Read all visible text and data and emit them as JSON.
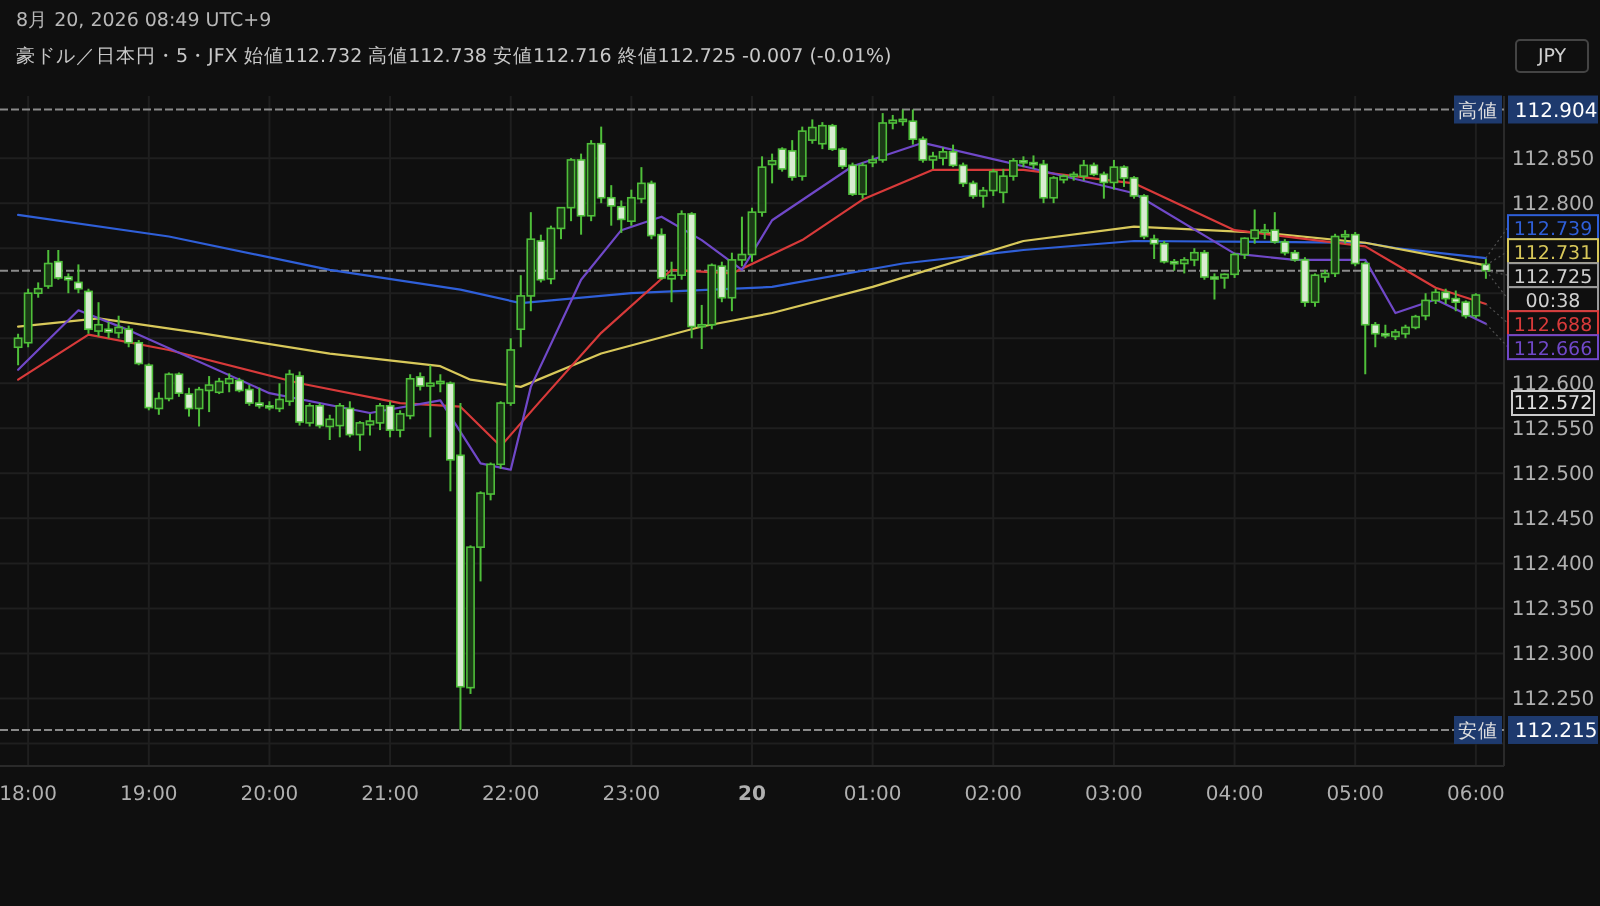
{
  "chart_data": {
    "type": "candlestick",
    "annotations": [
      "8月 20, 2026 08:49 UTC+9",
      "豪ドル／日本円・5・JFX 始値112.732 高値112.738 安値112.716 終値112.725 -0.007 (-0.01%)",
      "JPY",
      {
        "text": "112.739",
        "x": "2026-08-20T06:05",
        "y": 112.739
      },
      {
        "text": "112.731",
        "x": "2026-08-20T06:05",
        "y": 112.731
      },
      {
        "text": "112.725",
        "x": "2026-08-20T06:05",
        "y": 112.725
      },
      {
        "text": "00:38",
        "x": "2026-08-20T06:05",
        "y": 112.725
      },
      {
        "text": "112.688",
        "x": "2026-08-20T06:05",
        "y": 112.688
      },
      {
        "text": "112.666",
        "x": "2026-08-20T06:05",
        "y": 112.666
      },
      "112.572"
    ],
    "x": [
      "2026-08-19T17:55",
      "2026-08-19T18:00",
      "2026-08-19T18:05",
      "2026-08-19T18:10",
      "2026-08-19T18:15",
      "2026-08-19T18:20",
      "2026-08-19T18:25",
      "2026-08-19T18:30",
      "2026-08-19T18:35",
      "2026-08-19T18:40",
      "2026-08-19T18:45",
      "2026-08-19T18:50",
      "2026-08-19T18:55",
      "2026-08-19T19:00",
      "2026-08-19T19:05",
      "2026-08-19T19:10",
      "2026-08-19T19:15",
      "2026-08-19T19:20",
      "2026-08-19T19:25",
      "2026-08-19T19:30",
      "2026-08-19T19:35",
      "2026-08-19T19:40",
      "2026-08-19T19:45",
      "2026-08-19T19:50",
      "2026-08-19T19:55",
      "2026-08-19T20:00",
      "2026-08-19T20:05",
      "2026-08-19T20:10",
      "2026-08-19T20:15",
      "2026-08-19T20:20",
      "2026-08-19T20:25",
      "2026-08-19T20:30",
      "2026-08-19T20:35",
      "2026-08-19T20:40",
      "2026-08-19T20:45",
      "2026-08-19T20:50",
      "2026-08-19T20:55",
      "2026-08-19T21:00",
      "2026-08-19T21:05",
      "2026-08-19T21:10",
      "2026-08-19T21:15",
      "2026-08-19T21:20",
      "2026-08-19T21:25",
      "2026-08-19T21:30",
      "2026-08-19T21:35",
      "2026-08-19T21:40",
      "2026-08-19T21:45",
      "2026-08-19T21:50",
      "2026-08-19T21:55",
      "2026-08-19T22:00",
      "2026-08-19T22:05",
      "2026-08-19T22:10",
      "2026-08-19T22:15",
      "2026-08-19T22:20",
      "2026-08-19T22:25",
      "2026-08-19T22:30",
      "2026-08-19T22:35",
      "2026-08-19T22:40",
      "2026-08-19T22:45",
      "2026-08-19T22:50",
      "2026-08-19T22:55",
      "2026-08-19T23:00",
      "2026-08-19T23:05",
      "2026-08-19T23:10",
      "2026-08-19T23:15",
      "2026-08-19T23:20",
      "2026-08-19T23:25",
      "2026-08-19T23:30",
      "2026-08-19T23:35",
      "2026-08-19T23:40",
      "2026-08-19T23:45",
      "2026-08-19T23:50",
      "2026-08-19T23:55",
      "2026-08-20T00:00",
      "2026-08-20T00:05",
      "2026-08-20T00:10",
      "2026-08-20T00:15",
      "2026-08-20T00:20",
      "2026-08-20T00:25",
      "2026-08-20T00:30",
      "2026-08-20T00:35",
      "2026-08-20T00:40",
      "2026-08-20T00:45",
      "2026-08-20T00:50",
      "2026-08-20T00:55",
      "2026-08-20T01:00",
      "2026-08-20T01:05",
      "2026-08-20T01:10",
      "2026-08-20T01:15",
      "2026-08-20T01:20",
      "2026-08-20T01:25",
      "2026-08-20T01:30",
      "2026-08-20T01:35",
      "2026-08-20T01:40",
      "2026-08-20T01:45",
      "2026-08-20T01:50",
      "2026-08-20T01:55",
      "2026-08-20T02:00",
      "2026-08-20T02:05",
      "2026-08-20T02:10",
      "2026-08-20T02:15",
      "2026-08-20T02:20",
      "2026-08-20T02:25",
      "2026-08-20T02:30",
      "2026-08-20T02:35",
      "2026-08-20T02:40",
      "2026-08-20T02:45",
      "2026-08-20T02:50",
      "2026-08-20T02:55",
      "2026-08-20T03:00",
      "2026-08-20T03:05",
      "2026-08-20T03:10",
      "2026-08-20T03:15",
      "2026-08-20T03:20",
      "2026-08-20T03:25",
      "2026-08-20T03:30",
      "2026-08-20T03:35",
      "2026-08-20T03:40",
      "2026-08-20T03:45",
      "2026-08-20T03:50",
      "2026-08-20T03:55",
      "2026-08-20T04:00",
      "2026-08-20T04:05",
      "2026-08-20T04:10",
      "2026-08-20T04:15",
      "2026-08-20T04:20",
      "2026-08-20T04:25",
      "2026-08-20T04:30",
      "2026-08-20T04:35",
      "2026-08-20T04:40",
      "2026-08-20T04:45",
      "2026-08-20T04:50",
      "2026-08-20T04:55",
      "2026-08-20T05:00",
      "2026-08-20T05:05",
      "2026-08-20T05:10",
      "2026-08-20T05:15",
      "2026-08-20T05:20",
      "2026-08-20T05:25",
      "2026-08-20T05:30",
      "2026-08-20T05:35",
      "2026-08-20T05:40",
      "2026-08-20T05:45",
      "2026-08-20T05:50",
      "2026-08-20T05:55",
      "2026-08-20T06:00",
      "2026-08-20T06:05"
    ],
    "ohlc": [
      [
        112.64,
        112.655,
        112.62,
        112.65
      ],
      [
        112.645,
        112.705,
        112.64,
        112.7
      ],
      [
        112.7,
        112.712,
        112.695,
        112.705
      ],
      [
        112.708,
        112.748,
        112.705,
        112.733
      ],
      [
        112.735,
        112.748,
        112.715,
        112.717
      ],
      [
        112.718,
        112.722,
        112.7,
        112.715
      ],
      [
        112.712,
        112.732,
        112.7,
        112.705
      ],
      [
        112.702,
        112.705,
        112.655,
        112.66
      ],
      [
        112.658,
        112.69,
        112.652,
        112.665
      ],
      [
        112.66,
        112.668,
        112.65,
        112.657
      ],
      [
        112.656,
        112.675,
        112.65,
        112.662
      ],
      [
        112.66,
        112.664,
        112.64,
        112.645
      ],
      [
        112.645,
        112.648,
        112.62,
        112.622
      ],
      [
        112.62,
        112.622,
        112.57,
        112.573
      ],
      [
        112.572,
        112.59,
        112.565,
        112.583
      ],
      [
        112.583,
        112.612,
        112.58,
        112.61
      ],
      [
        112.61,
        112.612,
        112.585,
        112.589
      ],
      [
        112.588,
        112.595,
        112.563,
        112.572
      ],
      [
        112.572,
        112.596,
        112.552,
        112.593
      ],
      [
        112.592,
        112.608,
        112.568,
        112.598
      ],
      [
        112.59,
        112.606,
        112.588,
        112.602
      ],
      [
        112.6,
        112.611,
        112.59,
        112.605
      ],
      [
        112.603,
        112.606,
        112.59,
        112.592
      ],
      [
        112.593,
        112.598,
        112.575,
        112.578
      ],
      [
        112.578,
        112.595,
        112.572,
        112.575
      ],
      [
        112.575,
        112.58,
        112.57,
        112.574
      ],
      [
        112.572,
        112.6,
        112.568,
        112.582
      ],
      [
        112.58,
        112.615,
        112.575,
        112.61
      ],
      [
        112.608,
        112.613,
        112.553,
        112.557
      ],
      [
        112.556,
        112.578,
        112.552,
        112.575
      ],
      [
        112.575,
        112.578,
        112.55,
        112.553
      ],
      [
        112.552,
        112.565,
        112.537,
        112.56
      ],
      [
        112.553,
        112.578,
        112.54,
        112.575
      ],
      [
        112.572,
        112.58,
        112.54,
        112.543
      ],
      [
        112.543,
        112.558,
        112.525,
        112.556
      ],
      [
        112.554,
        112.566,
        112.542,
        112.558
      ],
      [
        112.556,
        112.578,
        112.548,
        112.575
      ],
      [
        112.575,
        112.58,
        112.54,
        112.548
      ],
      [
        112.548,
        112.57,
        112.54,
        112.566
      ],
      [
        112.564,
        112.61,
        112.56,
        112.605
      ],
      [
        112.607,
        112.612,
        112.592,
        112.597
      ],
      [
        112.597,
        112.62,
        112.54,
        112.6
      ],
      [
        112.6,
        112.61,
        112.59,
        112.602
      ],
      [
        112.6,
        112.602,
        112.48,
        112.515
      ],
      [
        112.52,
        112.578,
        112.215,
        112.263
      ],
      [
        112.262,
        112.42,
        112.255,
        112.418
      ],
      [
        112.418,
        112.48,
        112.38,
        112.478
      ],
      [
        112.477,
        112.512,
        112.47,
        112.51
      ],
      [
        112.51,
        112.58,
        112.505,
        112.578
      ],
      [
        112.578,
        112.65,
        112.575,
        112.637
      ],
      [
        112.66,
        112.72,
        112.64,
        112.697
      ],
      [
        112.697,
        112.79,
        112.68,
        112.76
      ],
      [
        112.758,
        112.765,
        112.712,
        112.715
      ],
      [
        112.716,
        112.775,
        112.71,
        112.772
      ],
      [
        112.772,
        112.795,
        112.76,
        112.795
      ],
      [
        112.795,
        112.85,
        112.78,
        112.848
      ],
      [
        112.848,
        112.855,
        112.765,
        112.786
      ],
      [
        112.786,
        112.87,
        112.78,
        112.866
      ],
      [
        112.866,
        112.885,
        112.8,
        112.806
      ],
      [
        112.806,
        112.82,
        112.775,
        112.797
      ],
      [
        112.796,
        112.803,
        112.767,
        112.782
      ],
      [
        112.78,
        112.815,
        112.775,
        112.806
      ],
      [
        112.805,
        112.84,
        112.8,
        112.822
      ],
      [
        112.822,
        112.825,
        112.76,
        112.764
      ],
      [
        112.765,
        112.772,
        112.715,
        112.717
      ],
      [
        112.716,
        112.735,
        112.69,
        112.72
      ],
      [
        112.72,
        112.792,
        112.715,
        112.788
      ],
      [
        112.788,
        112.79,
        112.65,
        112.663
      ],
      [
        112.663,
        112.687,
        112.638,
        112.665
      ],
      [
        112.665,
        112.733,
        112.66,
        112.731
      ],
      [
        112.73,
        112.735,
        112.69,
        112.695
      ],
      [
        112.695,
        112.745,
        112.68,
        112.737
      ],
      [
        112.737,
        112.785,
        112.73,
        112.743
      ],
      [
        112.743,
        112.795,
        112.735,
        112.79
      ],
      [
        112.79,
        112.852,
        112.785,
        112.84
      ],
      [
        112.843,
        112.855,
        112.822,
        112.847
      ],
      [
        112.86,
        112.862,
        112.835,
        112.838
      ],
      [
        112.858,
        112.87,
        112.825,
        112.829
      ],
      [
        112.83,
        112.885,
        112.825,
        112.88
      ],
      [
        112.87,
        112.893,
        112.866,
        112.884
      ],
      [
        112.866,
        112.89,
        112.86,
        112.886
      ],
      [
        112.886,
        112.888,
        112.858,
        112.86
      ],
      [
        112.86,
        112.862,
        112.838,
        112.841
      ],
      [
        112.842,
        112.845,
        112.808,
        112.81
      ],
      [
        112.81,
        112.845,
        112.805,
        112.842
      ],
      [
        112.845,
        112.853,
        112.84,
        112.848
      ],
      [
        112.848,
        112.9,
        112.845,
        112.889
      ],
      [
        112.889,
        112.898,
        112.882,
        112.892
      ],
      [
        112.891,
        112.904,
        112.886,
        112.893
      ],
      [
        112.891,
        112.904,
        112.865,
        112.871
      ],
      [
        112.871,
        112.874,
        112.845,
        112.848
      ],
      [
        112.848,
        112.857,
        112.838,
        112.852
      ],
      [
        112.85,
        112.862,
        112.842,
        112.857
      ],
      [
        112.857,
        112.865,
        112.84,
        112.842
      ],
      [
        112.842,
        112.845,
        112.818,
        112.822
      ],
      [
        112.822,
        112.825,
        112.805,
        112.808
      ],
      [
        112.808,
        112.818,
        112.795,
        112.814
      ],
      [
        112.814,
        112.838,
        112.808,
        112.835
      ],
      [
        112.812,
        112.838,
        112.8,
        112.83
      ],
      [
        112.83,
        112.85,
        112.825,
        112.847
      ],
      [
        112.847,
        112.852,
        112.84,
        112.845
      ],
      [
        112.845,
        112.853,
        112.838,
        112.843
      ],
      [
        112.843,
        112.848,
        112.8,
        112.806
      ],
      [
        112.806,
        112.83,
        112.8,
        112.828
      ],
      [
        112.826,
        112.832,
        112.822,
        112.83
      ],
      [
        112.83,
        112.835,
        112.825,
        112.832
      ],
      [
        112.83,
        112.848,
        112.825,
        112.842
      ],
      [
        112.842,
        112.845,
        112.83,
        112.832
      ],
      [
        112.832,
        112.835,
        112.805,
        112.823
      ],
      [
        112.823,
        112.848,
        112.815,
        112.84
      ],
      [
        112.84,
        112.842,
        112.818,
        112.828
      ],
      [
        112.828,
        112.83,
        112.805,
        112.808
      ],
      [
        112.808,
        112.81,
        112.76,
        112.763
      ],
      [
        112.76,
        112.765,
        112.738,
        112.755
      ],
      [
        112.755,
        112.758,
        112.733,
        112.735
      ],
      [
        112.735,
        112.738,
        112.725,
        112.733
      ],
      [
        112.733,
        112.74,
        112.722,
        112.737
      ],
      [
        112.737,
        112.75,
        112.73,
        112.745
      ],
      [
        112.745,
        112.748,
        112.715,
        112.718
      ],
      [
        112.718,
        112.722,
        112.693,
        112.717
      ],
      [
        112.717,
        112.722,
        112.705,
        112.721
      ],
      [
        112.721,
        112.745,
        112.717,
        112.743
      ],
      [
        112.743,
        112.762,
        112.738,
        112.761
      ],
      [
        112.761,
        112.793,
        112.755,
        112.77
      ],
      [
        112.768,
        112.777,
        112.76,
        112.77
      ],
      [
        112.77,
        112.79,
        112.755,
        112.757
      ],
      [
        112.757,
        112.76,
        112.742,
        112.745
      ],
      [
        112.745,
        112.748,
        112.735,
        112.737
      ],
      [
        112.737,
        112.74,
        112.685,
        112.69
      ],
      [
        112.69,
        112.722,
        112.685,
        112.72
      ],
      [
        112.718,
        112.726,
        112.712,
        112.722
      ],
      [
        112.722,
        112.766,
        112.718,
        112.763
      ],
      [
        112.763,
        112.77,
        112.755,
        112.765
      ],
      [
        112.765,
        112.768,
        112.73,
        112.733
      ],
      [
        112.733,
        112.735,
        112.61,
        112.665
      ],
      [
        112.665,
        112.668,
        112.64,
        112.655
      ],
      [
        112.655,
        112.665,
        112.65,
        112.654
      ],
      [
        112.652,
        112.66,
        112.648,
        112.657
      ],
      [
        112.655,
        112.665,
        112.65,
        112.662
      ],
      [
        112.662,
        112.676,
        112.66,
        112.674
      ],
      [
        112.675,
        112.7,
        112.67,
        112.692
      ],
      [
        112.692,
        112.705,
        112.688,
        112.701
      ],
      [
        112.701,
        112.705,
        112.688,
        112.694
      ],
      [
        112.694,
        112.703,
        112.68,
        112.69
      ],
      [
        112.69,
        112.692,
        112.672,
        112.675
      ],
      [
        112.675,
        112.7,
        112.672,
        112.698
      ],
      [
        112.732,
        112.738,
        112.716,
        112.725
      ]
    ],
    "series": [
      {
        "type": "line",
        "color": "#2f5fd8",
        "x": [
          "2026-08-19T17:55",
          "2026-08-19T19:10",
          "2026-08-19T20:30",
          "2026-08-19T21:35",
          "2026-08-19T22:05",
          "2026-08-19T23:00",
          "2026-08-20T00:10",
          "2026-08-20T01:15",
          "2026-08-20T02:15",
          "2026-08-20T03:10",
          "2026-08-20T04:15",
          "2026-08-20T05:05",
          "2026-08-20T05:20",
          "2026-08-20T06:05"
        ],
        "values": [
          112.787,
          112.763,
          112.726,
          112.704,
          112.689,
          112.7,
          112.707,
          112.733,
          112.748,
          112.758,
          112.757,
          112.756,
          112.75,
          112.739
        ]
      },
      {
        "type": "line",
        "color": "#d8c85a",
        "x": [
          "2026-08-19T17:55",
          "2026-08-19T18:35",
          "2026-08-19T19:25",
          "2026-08-19T20:30",
          "2026-08-19T21:25",
          "2026-08-19T21:40",
          "2026-08-19T22:05",
          "2026-08-19T22:45",
          "2026-08-19T23:35",
          "2026-08-20T00:10",
          "2026-08-20T01:00",
          "2026-08-20T02:15",
          "2026-08-20T03:10",
          "2026-08-20T04:15",
          "2026-08-20T05:05",
          "2026-08-20T06:05"
        ],
        "values": [
          112.663,
          112.672,
          112.656,
          112.633,
          112.619,
          112.604,
          112.596,
          112.633,
          112.663,
          112.678,
          112.707,
          112.758,
          112.774,
          112.767,
          112.756,
          112.731
        ]
      },
      {
        "type": "line",
        "color": "#d83a3a",
        "x": [
          "2026-08-19T17:55",
          "2026-08-19T18:30",
          "2026-08-19T19:10",
          "2026-08-19T20:15",
          "2026-08-19T21:05",
          "2026-08-19T21:35",
          "2026-08-19T21:55",
          "2026-08-19T22:15",
          "2026-08-19T22:45",
          "2026-08-19T23:20",
          "2026-08-19T23:50",
          "2026-08-20T00:25",
          "2026-08-20T00:55",
          "2026-08-20T01:30",
          "2026-08-20T02:15",
          "2026-08-20T03:10",
          "2026-08-20T04:00",
          "2026-08-20T05:05",
          "2026-08-20T05:40",
          "2026-08-20T06:05"
        ],
        "values": [
          112.604,
          112.654,
          112.637,
          112.6,
          112.578,
          112.574,
          112.53,
          112.581,
          112.656,
          112.726,
          112.722,
          112.759,
          112.804,
          112.837,
          112.837,
          112.822,
          112.77,
          112.752,
          112.706,
          112.688
        ]
      },
      {
        "type": "line",
        "color": "#7048c8",
        "x": [
          "2026-08-19T17:55",
          "2026-08-19T18:25",
          "2026-08-19T18:50",
          "2026-08-19T20:00",
          "2026-08-19T20:50",
          "2026-08-19T21:25",
          "2026-08-19T21:45",
          "2026-08-19T22:00",
          "2026-08-19T22:10",
          "2026-08-19T22:35",
          "2026-08-19T22:55",
          "2026-08-19T23:15",
          "2026-08-19T23:35",
          "2026-08-19T23:55",
          "2026-08-20T00:10",
          "2026-08-20T00:50",
          "2026-08-20T01:25",
          "2026-08-20T02:15",
          "2026-08-20T03:10",
          "2026-08-20T04:00",
          "2026-08-20T04:30",
          "2026-08-20T05:05",
          "2026-08-20T05:20",
          "2026-08-20T05:40",
          "2026-08-20T06:05"
        ],
        "values": [
          112.615,
          112.681,
          112.659,
          112.589,
          112.567,
          112.581,
          112.511,
          112.504,
          112.596,
          112.715,
          112.77,
          112.785,
          112.759,
          112.726,
          112.781,
          112.841,
          112.867,
          112.841,
          112.811,
          112.744,
          112.737,
          112.737,
          112.678,
          112.693,
          112.666
        ]
      }
    ],
    "xlim": [
      "2026-08-19T17:46",
      "2026-08-20T06:14"
    ],
    "xticks": [
      {
        "value": "2026-08-19T18:00",
        "label": "18:00"
      },
      {
        "value": "2026-08-19T19:00",
        "label": "19:00"
      },
      {
        "value": "2026-08-19T20:00",
        "label": "20:00"
      },
      {
        "value": "2026-08-19T21:00",
        "label": "21:00"
      },
      {
        "value": "2026-08-19T22:00",
        "label": "22:00"
      },
      {
        "value": "2026-08-19T23:00",
        "label": "23:00"
      },
      {
        "value": "2026-08-20T00:00",
        "label": "20"
      },
      {
        "value": "2026-08-20T01:00",
        "label": "01:00"
      },
      {
        "value": "2026-08-20T02:00",
        "label": "02:00"
      },
      {
        "value": "2026-08-20T03:00",
        "label": "03:00"
      },
      {
        "value": "2026-08-20T04:00",
        "label": "04:00"
      },
      {
        "value": "2026-08-20T05:00",
        "label": "05:00"
      },
      {
        "value": "2026-08-20T06:00",
        "label": "06:00"
      }
    ],
    "ylim": [
      112.175,
      112.919
    ],
    "yticks": [
      {
        "value": 112.2,
        "label": null
      },
      {
        "value": 112.25,
        "label": "112.250"
      },
      {
        "value": 112.3,
        "label": "112.300"
      },
      {
        "value": 112.35,
        "label": "112.350"
      },
      {
        "value": 112.4,
        "label": "112.400"
      },
      {
        "value": 112.45,
        "label": "112.450"
      },
      {
        "value": 112.5,
        "label": "112.500"
      },
      {
        "value": 112.55,
        "label": "112.550"
      },
      {
        "value": 112.6,
        "label": "112.600"
      },
      {
        "value": 112.65,
        "label": null
      },
      {
        "value": 112.7,
        "label": null
      },
      {
        "value": 112.75,
        "label": null
      },
      {
        "value": 112.8,
        "label": "112.800"
      },
      {
        "value": 112.85,
        "label": "112.850"
      }
    ],
    "ref_lines": [
      {
        "axis": "y",
        "value": 112.904,
        "label": "高値 112.904",
        "color": "#8a8a8a",
        "line_style": "dotted"
      },
      {
        "axis": "y",
        "value": 112.215,
        "label": "安値 112.215",
        "color": "#8a8a8a",
        "line_style": "dotted"
      },
      {
        "axis": "y",
        "value": 112.725,
        "label": null,
        "color": "#8a8a8a",
        "line_style": "dotted"
      }
    ],
    "grid": true
  }
}
